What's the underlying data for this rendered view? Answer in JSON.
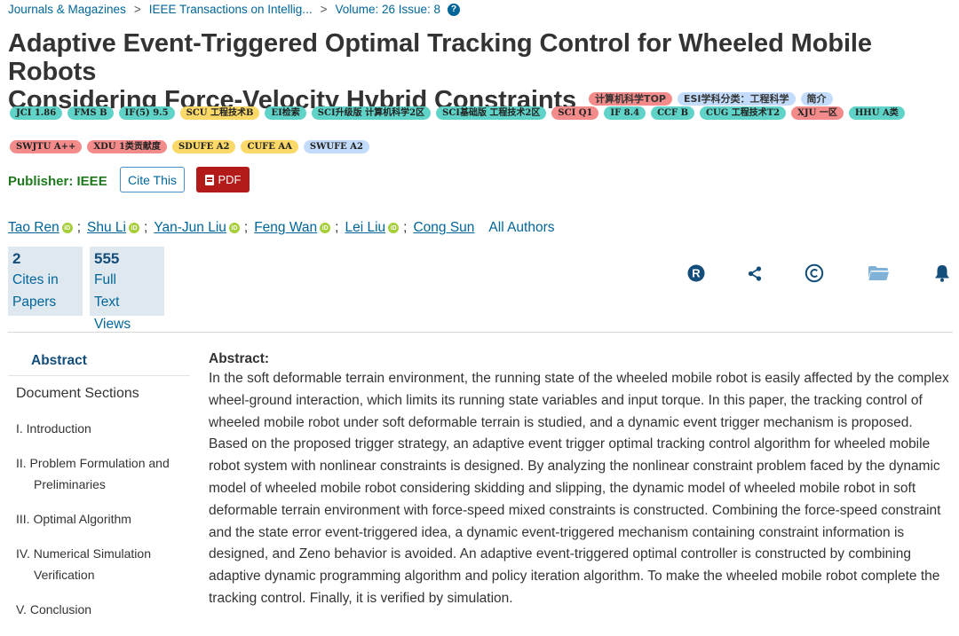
{
  "breadcrumb": {
    "items": [
      "Journals & Magazines",
      "IEEE Transactions on Intellig...",
      "Volume: 26 Issue: 8"
    ],
    "separator": ">",
    "help_glyph": "?"
  },
  "title": {
    "line1": "Adaptive Event-Triggered Optimal Tracking Control for Wheeled Mobile Robots",
    "line2": "Considering Force-Velocity Hybrid Constraints",
    "tags": [
      "计算机科学TOP",
      "ESI学科分类：工程科学",
      "简介"
    ]
  },
  "badges": {
    "row1": [
      "JCI 1.86",
      "FMS B",
      "IF(5) 9.5",
      "SCU 工程技术B",
      "EI检索",
      "SCI升级版 计算机科学2区",
      "SCI基础版 工程技术2区",
      "SCI Q1",
      "IF 8.4",
      "CCF B",
      "CUG 工程技术T2",
      "XJU 一区",
      "HHU A类"
    ],
    "row2": [
      "SWJTU A++",
      "XDU 1类贡献度",
      "SDUFE A2",
      "CUFE AA",
      "SWUFE A2"
    ]
  },
  "publisher": {
    "label": "Publisher: IEEE",
    "cite_label": "Cite This",
    "pdf_label": "PDF"
  },
  "authors": {
    "names": [
      "Tao Ren",
      "Shu Li",
      "Yan-Jun Liu",
      "Feng Wan",
      "Lei Liu",
      "Cong Sun"
    ],
    "all_label": "All Authors",
    "separator": ";"
  },
  "metrics": {
    "cites": {
      "value": "2",
      "label_1": "Cites in",
      "label_2": "Papers"
    },
    "views": {
      "value": "555",
      "label_1": "Full",
      "label_2": "Text",
      "label_3": "Views"
    }
  },
  "toolbar_icons": [
    "rights-icon",
    "share-icon",
    "copyright-icon",
    "folder-icon",
    "bell-icon"
  ],
  "sidebar": {
    "abstract_label": "Abstract",
    "doc_sections_label": "Document Sections",
    "items": [
      {
        "line1": "I. Introduction",
        "line2": ""
      },
      {
        "line1": "II. Problem Formulation and",
        "line2": "Preliminaries"
      },
      {
        "line1": "III. Optimal Algorithm",
        "line2": ""
      },
      {
        "line1": "IV. Numerical Simulation",
        "line2": "Verification"
      },
      {
        "line1": "V. Conclusion",
        "line2": ""
      }
    ]
  },
  "abstract": {
    "heading": "Abstract:",
    "text": "In the soft deformable terrain environment, the running state of the wheeled mobile robot is easily affected by the complex wheel-ground interaction, which limits its running state variables and input torque. In this paper, the tracking control of wheeled mobile robot under soft deformable terrain is studied, and a dynamic event trigger mechanism is proposed. Based on the proposed trigger strategy, an adaptive event trigger optimal tracking control algorithm for wheeled mobile robot system with nonlinear constraints is designed. By analyzing the nonlinear constraint problem faced by the dynamic model of wheeled mobile robot considering skidding and slipping, the dynamic model of wheeled mobile robot in soft deformable terrain environment with force-speed mixed constraints is constructed. Combining the force-speed constraint and the state error event-triggered idea, a dynamic event-triggered mechanism containing constraint information is designed, and Zeno behavior is avoided. An adaptive event-triggered optimal controller is constructed by combining adaptive dynamic programming algorithm and policy iteration algorithm. To make the wheeled mobile robot complete the tracking control. Finally, it is verified by simulation."
  },
  "colors": {
    "link": "#006699",
    "publisher": "#1f7a1f",
    "pdf_button": "#b31b1b",
    "badge_teal": "#5fd3c7",
    "badge_red": "#f48b8b",
    "badge_yellow": "#fbd968",
    "badge_blue": "#c3dcfb",
    "orcid": "#a6ce39"
  }
}
